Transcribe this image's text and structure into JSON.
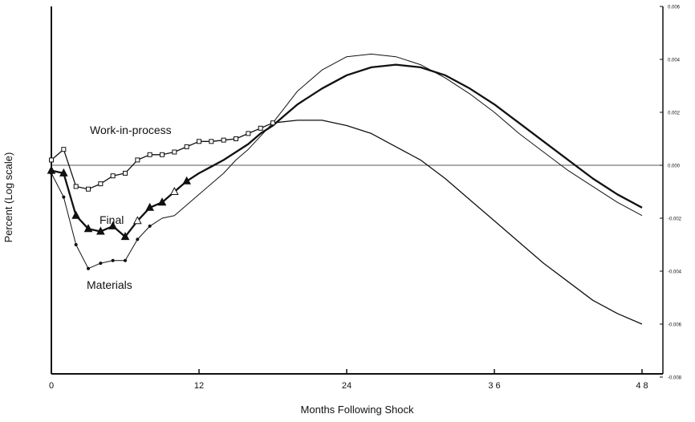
{
  "chart_data": {
    "type": "line",
    "xlabel": "Months Following Shock",
    "ylabel": "Percent (Log scale)",
    "xlim": [
      0,
      48
    ],
    "ylim": [
      -0.008,
      0.006
    ],
    "x_ticks": [
      0,
      12,
      24,
      36,
      48
    ],
    "x_tick_labels": [
      "0",
      "12",
      "24",
      "3 6",
      "4 8"
    ],
    "y_ticks": [
      -0.008,
      -0.006,
      -0.004,
      -0.002,
      0.0,
      0.002,
      0.004,
      0.006
    ],
    "y_tick_labels": [
      "-0.008",
      "-0.006",
      "-0.004",
      "-0.002",
      "0.000",
      "0.002",
      "0.004",
      "0.006"
    ],
    "grid": false,
    "zero_line": true,
    "series": [
      {
        "name": "Work-in-process",
        "line_width": 1.3,
        "marker": "square-open",
        "marker_count": 19,
        "points": [
          [
            0,
            0.0002
          ],
          [
            1,
            0.0006
          ],
          [
            2,
            -0.0008
          ],
          [
            3,
            -0.0009
          ],
          [
            4,
            -0.0007
          ],
          [
            5,
            -0.0004
          ],
          [
            6,
            -0.0003
          ],
          [
            7,
            0.0002
          ],
          [
            8,
            0.0004
          ],
          [
            9,
            0.0004
          ],
          [
            10,
            0.0005
          ],
          [
            11,
            0.0007
          ],
          [
            12,
            0.0009
          ],
          [
            13,
            0.0009
          ],
          [
            14,
            0.00095
          ],
          [
            15,
            0.001
          ],
          [
            16,
            0.0012
          ],
          [
            17,
            0.0014
          ],
          [
            18,
            0.0016
          ],
          [
            20,
            0.0017
          ],
          [
            22,
            0.0017
          ],
          [
            24,
            0.0015
          ],
          [
            26,
            0.0012
          ],
          [
            28,
            0.0007
          ],
          [
            30,
            0.0002
          ],
          [
            32,
            -0.0005
          ],
          [
            34,
            -0.0013
          ],
          [
            36,
            -0.0021
          ],
          [
            38,
            -0.0029
          ],
          [
            40,
            -0.0037
          ],
          [
            42,
            -0.0044
          ],
          [
            44,
            -0.0051
          ],
          [
            46,
            -0.0056
          ],
          [
            48,
            -0.006
          ]
        ]
      },
      {
        "name": "Final",
        "line_width": 2.3,
        "marker": "triangle-filled",
        "marker_count": 12,
        "points": [
          [
            0,
            -0.0002
          ],
          [
            1,
            -0.0003
          ],
          [
            2,
            -0.0019
          ],
          [
            3,
            -0.0024
          ],
          [
            4,
            -0.0025
          ],
          [
            5,
            -0.0023
          ],
          [
            6,
            -0.0027
          ],
          [
            7,
            -0.0021
          ],
          [
            8,
            -0.0016
          ],
          [
            9,
            -0.0014
          ],
          [
            10,
            -0.001
          ],
          [
            11,
            -0.0006
          ],
          [
            12,
            -0.0003
          ],
          [
            13,
            -5e-05
          ],
          [
            14,
            0.0002
          ],
          [
            15,
            0.0005
          ],
          [
            16,
            0.0008
          ],
          [
            17,
            0.0012
          ],
          [
            18,
            0.0015
          ],
          [
            19,
            0.0019
          ],
          [
            20,
            0.0023
          ],
          [
            22,
            0.0029
          ],
          [
            24,
            0.0034
          ],
          [
            26,
            0.0037
          ],
          [
            28,
            0.0038
          ],
          [
            30,
            0.0037
          ],
          [
            32,
            0.0034
          ],
          [
            34,
            0.0029
          ],
          [
            36,
            0.0023
          ],
          [
            38,
            0.0016
          ],
          [
            40,
            0.0009
          ],
          [
            42,
            0.0002
          ],
          [
            44,
            -0.0005
          ],
          [
            46,
            -0.0011
          ],
          [
            48,
            -0.0016
          ]
        ]
      },
      {
        "name": "Materials",
        "line_width": 1.0,
        "marker": "dot",
        "marker_count": 9,
        "points": [
          [
            0,
            -0.0003
          ],
          [
            1,
            -0.0012
          ],
          [
            2,
            -0.003
          ],
          [
            3,
            -0.0039
          ],
          [
            4,
            -0.0037
          ],
          [
            5,
            -0.0036
          ],
          [
            6,
            -0.0036
          ],
          [
            7,
            -0.0028
          ],
          [
            8,
            -0.0023
          ],
          [
            9,
            -0.002
          ],
          [
            10,
            -0.0019
          ],
          [
            11,
            -0.0015
          ],
          [
            12,
            -0.0011
          ],
          [
            13,
            -0.0007
          ],
          [
            14,
            -0.0003
          ],
          [
            15,
            0.0002
          ],
          [
            16,
            0.0006
          ],
          [
            17,
            0.0011
          ],
          [
            18,
            0.0016
          ],
          [
            19,
            0.0022
          ],
          [
            20,
            0.0028
          ],
          [
            22,
            0.0036
          ],
          [
            24,
            0.0041
          ],
          [
            26,
            0.0042
          ],
          [
            28,
            0.0041
          ],
          [
            30,
            0.0038
          ],
          [
            32,
            0.0033
          ],
          [
            34,
            0.0027
          ],
          [
            36,
            0.002
          ],
          [
            38,
            0.0012
          ],
          [
            40,
            0.0005
          ],
          [
            42,
            -0.0002
          ],
          [
            44,
            -0.0008
          ],
          [
            46,
            -0.0014
          ],
          [
            48,
            -0.0019
          ]
        ]
      }
    ]
  }
}
